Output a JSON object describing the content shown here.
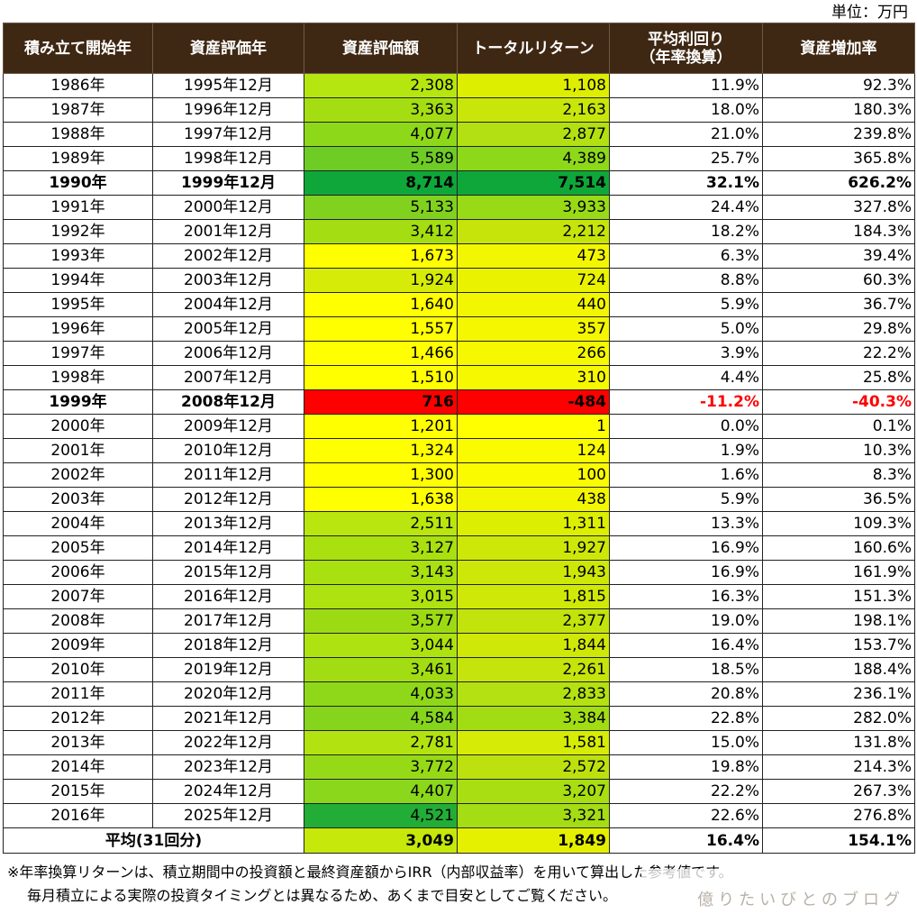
{
  "unit_label": "単位：万円",
  "headers": [
    "積み立て開始年",
    "資産評価年",
    "資産評価額",
    "トータルリターン",
    "平均利回り\n（年率換算）",
    "資産増加率"
  ],
  "rows": [
    {
      "start": "1986年",
      "year": "1995年12月",
      "value": "2,308",
      "ret": "1,108",
      "rate": "11.9%",
      "growth": "92.3%",
      "c1": "#b6e60f",
      "c2": "#deee00",
      "bold": false,
      "neg": false
    },
    {
      "start": "1987年",
      "year": "1996年12月",
      "value": "3,363",
      "ret": "2,163",
      "rate": "18.0%",
      "growth": "180.3%",
      "c1": "#a4de12",
      "c2": "#c8e60a",
      "bold": false,
      "neg": false
    },
    {
      "start": "1988年",
      "year": "1997年12月",
      "value": "4,077",
      "ret": "2,877",
      "rate": "21.0%",
      "growth": "239.8%",
      "c1": "#8ed81a",
      "c2": "#b2e012",
      "bold": false,
      "neg": false
    },
    {
      "start": "1989年",
      "year": "1998年12月",
      "value": "5,589",
      "ret": "4,389",
      "rate": "25.7%",
      "growth": "365.8%",
      "c1": "#6fcc24",
      "c2": "#8ed81a",
      "bold": false,
      "neg": false
    },
    {
      "start": "1990年",
      "year": "1999年12月",
      "value": "8,714",
      "ret": "7,514",
      "rate": "32.1%",
      "growth": "626.2%",
      "c1": "#0fa73a",
      "c2": "#0fa73a",
      "bold": true,
      "neg": false
    },
    {
      "start": "1991年",
      "year": "2000年12月",
      "value": "5,133",
      "ret": "3,933",
      "rate": "24.4%",
      "growth": "327.8%",
      "c1": "#80d21e",
      "c2": "#98da16",
      "bold": false,
      "neg": false
    },
    {
      "start": "1992年",
      "year": "2001年12月",
      "value": "3,412",
      "ret": "2,212",
      "rate": "18.2%",
      "growth": "184.3%",
      "c1": "#a4de12",
      "c2": "#c6e40a",
      "bold": false,
      "neg": false
    },
    {
      "start": "1993年",
      "year": "2002年12月",
      "value": "1,673",
      "ret": "473",
      "rate": "6.3%",
      "growth": "39.4%",
      "c1": "#ffff00",
      "c2": "#f2f600",
      "bold": false,
      "neg": false
    },
    {
      "start": "1994年",
      "year": "2003年12月",
      "value": "1,924",
      "ret": "724",
      "rate": "8.8%",
      "growth": "60.3%",
      "c1": "#d6ec08",
      "c2": "#eaf200",
      "bold": false,
      "neg": false
    },
    {
      "start": "1995年",
      "year": "2004年12月",
      "value": "1,640",
      "ret": "440",
      "rate": "5.9%",
      "growth": "36.7%",
      "c1": "#ffff00",
      "c2": "#f2f600",
      "bold": false,
      "neg": false
    },
    {
      "start": "1996年",
      "year": "2005年12月",
      "value": "1,557",
      "ret": "357",
      "rate": "5.0%",
      "growth": "29.8%",
      "c1": "#ffff00",
      "c2": "#f4f700",
      "bold": false,
      "neg": false
    },
    {
      "start": "1997年",
      "year": "2006年12月",
      "value": "1,466",
      "ret": "266",
      "rate": "3.9%",
      "growth": "22.2%",
      "c1": "#ffff00",
      "c2": "#f6f800",
      "bold": false,
      "neg": false
    },
    {
      "start": "1998年",
      "year": "2007年12月",
      "value": "1,510",
      "ret": "310",
      "rate": "4.4%",
      "growth": "25.8%",
      "c1": "#ffff00",
      "c2": "#f6f800",
      "bold": false,
      "neg": false
    },
    {
      "start": "1999年",
      "year": "2008年12月",
      "value": "716",
      "ret": "-484",
      "rate": "-11.2%",
      "growth": "-40.3%",
      "c1": "#ff0000",
      "c2": "#ff0000",
      "bold": true,
      "neg": true
    },
    {
      "start": "2000年",
      "year": "2009年12月",
      "value": "1,201",
      "ret": "1",
      "rate": "0.0%",
      "growth": "0.1%",
      "c1": "#ffff00",
      "c2": "#ffff00",
      "bold": false,
      "neg": false
    },
    {
      "start": "2001年",
      "year": "2010年12月",
      "value": "1,324",
      "ret": "124",
      "rate": "1.9%",
      "growth": "10.3%",
      "c1": "#ffff00",
      "c2": "#fbfb00",
      "bold": false,
      "neg": false
    },
    {
      "start": "2002年",
      "year": "2011年12月",
      "value": "1,300",
      "ret": "100",
      "rate": "1.6%",
      "growth": "8.3%",
      "c1": "#ffff00",
      "c2": "#fbfb00",
      "bold": false,
      "neg": false
    },
    {
      "start": "2003年",
      "year": "2012年12月",
      "value": "1,638",
      "ret": "438",
      "rate": "5.9%",
      "growth": "36.5%",
      "c1": "#ffff00",
      "c2": "#f2f600",
      "bold": false,
      "neg": false
    },
    {
      "start": "2004年",
      "year": "2013年12月",
      "value": "2,511",
      "ret": "1,311",
      "rate": "13.3%",
      "growth": "109.3%",
      "c1": "#b8e60e",
      "c2": "#dcee02",
      "bold": false,
      "neg": false
    },
    {
      "start": "2005年",
      "year": "2014年12月",
      "value": "3,127",
      "ret": "1,927",
      "rate": "16.9%",
      "growth": "160.6%",
      "c1": "#a9e010",
      "c2": "#cde808",
      "bold": false,
      "neg": false
    },
    {
      "start": "2006年",
      "year": "2015年12月",
      "value": "3,143",
      "ret": "1,943",
      "rate": "16.9%",
      "growth": "161.9%",
      "c1": "#a9e010",
      "c2": "#cde808",
      "bold": false,
      "neg": false
    },
    {
      "start": "2007年",
      "year": "2016年12月",
      "value": "3,015",
      "ret": "1,815",
      "rate": "16.3%",
      "growth": "151.3%",
      "c1": "#aee211",
      "c2": "#d0e808",
      "bold": false,
      "neg": false
    },
    {
      "start": "2008年",
      "year": "2017年12月",
      "value": "3,577",
      "ret": "2,377",
      "rate": "19.0%",
      "growth": "198.1%",
      "c1": "#9cdb14",
      "c2": "#c2e30c",
      "bold": false,
      "neg": false
    },
    {
      "start": "2009年",
      "year": "2018年12月",
      "value": "3,044",
      "ret": "1,844",
      "rate": "16.4%",
      "growth": "153.7%",
      "c1": "#aee211",
      "c2": "#d0e808",
      "bold": false,
      "neg": false
    },
    {
      "start": "2010年",
      "year": "2019年12月",
      "value": "3,461",
      "ret": "2,261",
      "rate": "18.5%",
      "growth": "188.4%",
      "c1": "#a2dd13",
      "c2": "#c5e40b",
      "bold": false,
      "neg": false
    },
    {
      "start": "2011年",
      "year": "2020年12月",
      "value": "4,033",
      "ret": "2,833",
      "rate": "20.8%",
      "growth": "236.1%",
      "c1": "#8fd819",
      "c2": "#b4e111",
      "bold": false,
      "neg": false
    },
    {
      "start": "2012年",
      "year": "2021年12月",
      "value": "4,584",
      "ret": "3,384",
      "rate": "22.8%",
      "growth": "282.0%",
      "c1": "#86d51c",
      "c2": "#a2dd13",
      "bold": false,
      "neg": false
    },
    {
      "start": "2013年",
      "year": "2022年12月",
      "value": "2,781",
      "ret": "1,581",
      "rate": "15.0%",
      "growth": "131.8%",
      "c1": "#b2e310",
      "c2": "#d6eb06",
      "bold": false,
      "neg": false
    },
    {
      "start": "2014年",
      "year": "2023年12月",
      "value": "3,772",
      "ret": "2,572",
      "rate": "19.8%",
      "growth": "214.3%",
      "c1": "#96da17",
      "c2": "#bce10e",
      "bold": false,
      "neg": false
    },
    {
      "start": "2015年",
      "year": "2024年12月",
      "value": "4,407",
      "ret": "3,207",
      "rate": "22.2%",
      "growth": "267.3%",
      "c1": "#8ad71b",
      "c2": "#a8de12",
      "bold": false,
      "neg": false
    },
    {
      "start": "2016年",
      "year": "2025年12月",
      "value": "4,521",
      "ret": "3,321",
      "rate": "22.6%",
      "growth": "276.8%",
      "c1": "#22ad36",
      "c2": "#a4dd13",
      "bold": false,
      "neg": false
    }
  ],
  "average": {
    "label": "平均(31回分)",
    "value": "3,049",
    "ret": "1,849",
    "rate": "16.4%",
    "growth": "154.1%",
    "c1": "#c6e80a",
    "c2": "#e4f000"
  },
  "notes": [
    "※年率換算リターンは、積立期間中の投資額と最終資産額からIRR（内部収益率）を用いて算出した参考値です。",
    "毎月積立による実際の投資タイミングとは異なるため、あくまで目安としてご覧ください。"
  ],
  "watermark": "億りたいびとのブログ"
}
